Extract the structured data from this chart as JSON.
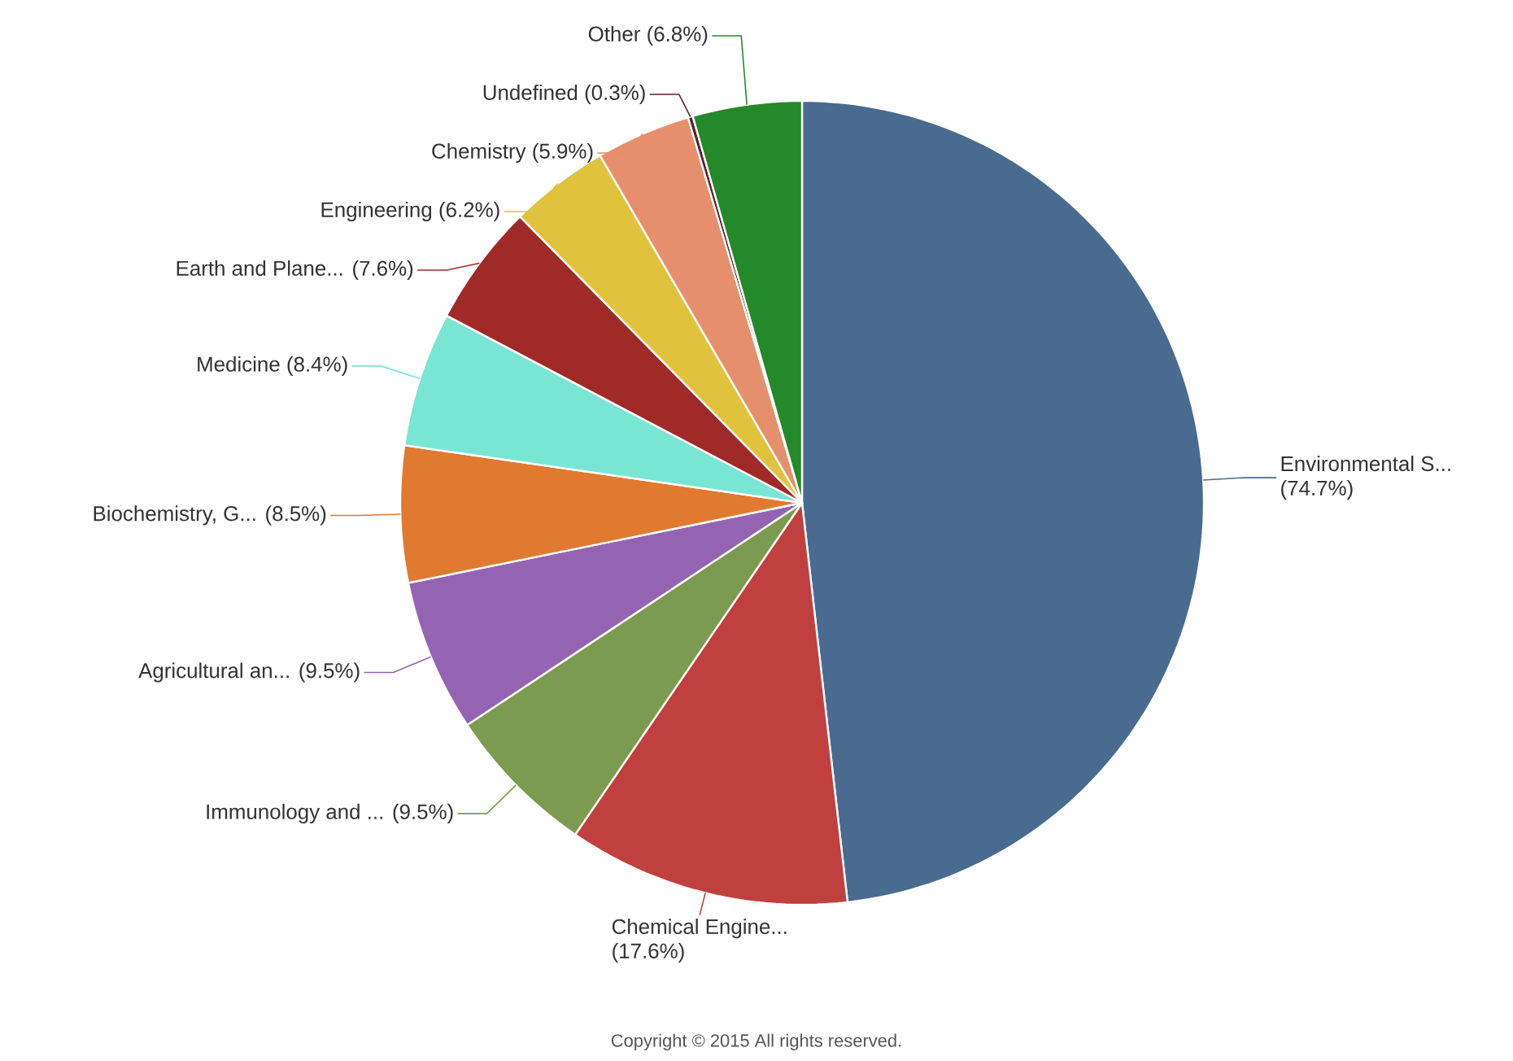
{
  "chart_data": {
    "type": "pie",
    "categories": [
      "Environmental S...",
      "Chemical Engine...",
      "Immunology and ...",
      "Agricultural an...",
      "Biochemistry, G...",
      "Medicine",
      "Earth and Plane...",
      "Engineering",
      "Chemistry",
      "Undefined",
      "Other"
    ],
    "values": [
      74.7,
      17.6,
      9.5,
      9.5,
      8.5,
      8.4,
      7.6,
      6.2,
      5.9,
      0.3,
      6.8
    ],
    "value_labels": [
      "(74.7%)",
      "(17.6%)",
      "(9.5%)",
      "(9.5%)",
      "(8.5%)",
      "(8.4%)",
      "(7.6%)",
      "(6.2%)",
      "(5.9%)",
      "(0.3%)",
      "(6.8%)"
    ],
    "colors": [
      "#4a6b90",
      "#c0403f",
      "#7b9b50",
      "#9464b3",
      "#e07a30",
      "#78e6d2",
      "#a02a28",
      "#e0c23c",
      "#e68f6c",
      "#5a2030",
      "#23892a"
    ],
    "annotations": [
      "Copyright © 2015 All rights reserved."
    ]
  }
}
